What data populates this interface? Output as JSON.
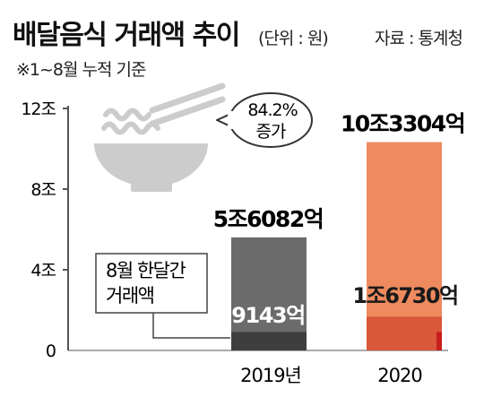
{
  "header": {
    "title": "배달음식 거래액 추이",
    "unit": "(단위 : 원)",
    "source": "자료 : 통계청",
    "subtitle": "※1~8월 누적 기준"
  },
  "chart_data": {
    "type": "bar",
    "categories": [
      "2019년",
      "2020"
    ],
    "yticks": [
      "0",
      "4조",
      "8조",
      "12조"
    ],
    "ylim": [
      0,
      12
    ],
    "series": [
      {
        "name": "1~8월 누적 거래액",
        "values": [
          5.6082,
          10.3304
        ],
        "labels": [
          "5조6082억",
          "10조3304억"
        ]
      },
      {
        "name": "8월 한달간 거래액",
        "values": [
          0.9143,
          1.673
        ],
        "labels": [
          "9143억",
          "1조6730억"
        ]
      }
    ],
    "annotations": {
      "growth_callout": [
        "84.2%",
        "증가"
      ],
      "legend_callout": [
        "8월 한달간",
        "거래액"
      ]
    },
    "colors": {
      "cum_2019": "#6b6b6b",
      "month_2019": "#3e3e3e",
      "cum_2020": "#ee8a5e",
      "month_2020": "#d9573a",
      "month_2020_edge": "#c81e1e",
      "axis": "#555555",
      "icon": "#cccccc"
    },
    "icon": "noodle-bowl-icon"
  }
}
